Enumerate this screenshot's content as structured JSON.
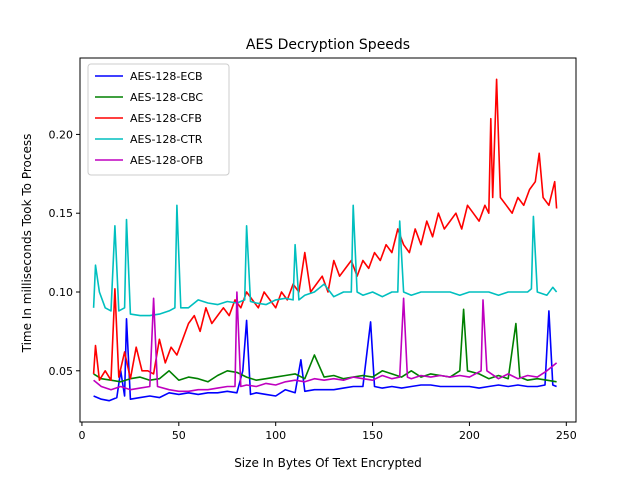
{
  "chart_data": {
    "type": "line",
    "title": "AES Decryption Speeds",
    "xlabel": "Size In Bytes Of Text Encrypted",
    "ylabel": "Time In milliseconds Took To Process",
    "xlim": [
      -1,
      255
    ],
    "ylim": [
      0.0175,
      0.2485
    ],
    "xticks": [
      0,
      50,
      100,
      150,
      200,
      250
    ],
    "yticks": [
      0.05,
      0.1,
      0.15,
      0.2
    ],
    "xtick_labels": [
      "0",
      "50",
      "100",
      "150",
      "200",
      "250"
    ],
    "ytick_labels": [
      "0.05",
      "0.10",
      "0.15",
      "0.20"
    ],
    "legend_position": "top-left",
    "grid": false,
    "series": [
      {
        "name": "AES-128-ECB",
        "color": "#0000ff",
        "points": [
          [
            6,
            0.034
          ],
          [
            10,
            0.032
          ],
          [
            14,
            0.031
          ],
          [
            18,
            0.033
          ],
          [
            20,
            0.05
          ],
          [
            22,
            0.034
          ],
          [
            23,
            0.083
          ],
          [
            25,
            0.032
          ],
          [
            30,
            0.033
          ],
          [
            35,
            0.034
          ],
          [
            40,
            0.033
          ],
          [
            45,
            0.036
          ],
          [
            50,
            0.035
          ],
          [
            55,
            0.036
          ],
          [
            60,
            0.035
          ],
          [
            65,
            0.036
          ],
          [
            70,
            0.036
          ],
          [
            75,
            0.037
          ],
          [
            80,
            0.036
          ],
          [
            83,
            0.05
          ],
          [
            85,
            0.082
          ],
          [
            87,
            0.035
          ],
          [
            90,
            0.036
          ],
          [
            95,
            0.035
          ],
          [
            100,
            0.034
          ],
          [
            105,
            0.038
          ],
          [
            110,
            0.036
          ],
          [
            113,
            0.057
          ],
          [
            115,
            0.037
          ],
          [
            120,
            0.038
          ],
          [
            125,
            0.038
          ],
          [
            130,
            0.038
          ],
          [
            135,
            0.039
          ],
          [
            140,
            0.04
          ],
          [
            145,
            0.04
          ],
          [
            149,
            0.081
          ],
          [
            151,
            0.04
          ],
          [
            155,
            0.039
          ],
          [
            160,
            0.04
          ],
          [
            165,
            0.039
          ],
          [
            170,
            0.04
          ],
          [
            175,
            0.041
          ],
          [
            180,
            0.041
          ],
          [
            185,
            0.04
          ],
          [
            190,
            0.04
          ],
          [
            195,
            0.04
          ],
          [
            200,
            0.04
          ],
          [
            205,
            0.039
          ],
          [
            210,
            0.04
          ],
          [
            215,
            0.041
          ],
          [
            220,
            0.04
          ],
          [
            225,
            0.041
          ],
          [
            230,
            0.04
          ],
          [
            235,
            0.04
          ],
          [
            239,
            0.041
          ],
          [
            241,
            0.088
          ],
          [
            243,
            0.041
          ],
          [
            245,
            0.04
          ]
        ]
      },
      {
        "name": "AES-128-CBC",
        "color": "#008000",
        "points": [
          [
            6,
            0.048
          ],
          [
            10,
            0.045
          ],
          [
            15,
            0.044
          ],
          [
            20,
            0.043
          ],
          [
            25,
            0.045
          ],
          [
            30,
            0.046
          ],
          [
            35,
            0.044
          ],
          [
            40,
            0.045
          ],
          [
            45,
            0.05
          ],
          [
            50,
            0.044
          ],
          [
            55,
            0.046
          ],
          [
            60,
            0.045
          ],
          [
            65,
            0.043
          ],
          [
            70,
            0.047
          ],
          [
            75,
            0.05
          ],
          [
            80,
            0.049
          ],
          [
            85,
            0.046
          ],
          [
            90,
            0.044
          ],
          [
            95,
            0.045
          ],
          [
            100,
            0.046
          ],
          [
            105,
            0.047
          ],
          [
            110,
            0.048
          ],
          [
            115,
            0.045
          ],
          [
            120,
            0.06
          ],
          [
            125,
            0.046
          ],
          [
            130,
            0.047
          ],
          [
            135,
            0.045
          ],
          [
            140,
            0.046
          ],
          [
            145,
            0.047
          ],
          [
            150,
            0.046
          ],
          [
            155,
            0.05
          ],
          [
            160,
            0.048
          ],
          [
            165,
            0.046
          ],
          [
            170,
            0.05
          ],
          [
            175,
            0.046
          ],
          [
            180,
            0.048
          ],
          [
            185,
            0.047
          ],
          [
            190,
            0.046
          ],
          [
            195,
            0.05
          ],
          [
            197,
            0.089
          ],
          [
            199,
            0.05
          ],
          [
            205,
            0.048
          ],
          [
            210,
            0.045
          ],
          [
            215,
            0.047
          ],
          [
            220,
            0.045
          ],
          [
            224,
            0.08
          ],
          [
            226,
            0.046
          ],
          [
            230,
            0.044
          ],
          [
            235,
            0.045
          ],
          [
            240,
            0.044
          ],
          [
            245,
            0.043
          ]
        ]
      },
      {
        "name": "AES-128-CFB",
        "color": "#ff0000",
        "points": [
          [
            6,
            0.048
          ],
          [
            7,
            0.066
          ],
          [
            9,
            0.044
          ],
          [
            12,
            0.05
          ],
          [
            15,
            0.044
          ],
          [
            17,
            0.102
          ],
          [
            19,
            0.046
          ],
          [
            22,
            0.062
          ],
          [
            25,
            0.045
          ],
          [
            28,
            0.065
          ],
          [
            31,
            0.05
          ],
          [
            34,
            0.05
          ],
          [
            37,
            0.048
          ],
          [
            40,
            0.07
          ],
          [
            43,
            0.055
          ],
          [
            46,
            0.065
          ],
          [
            49,
            0.06
          ],
          [
            52,
            0.07
          ],
          [
            55,
            0.08
          ],
          [
            58,
            0.085
          ],
          [
            61,
            0.075
          ],
          [
            64,
            0.09
          ],
          [
            67,
            0.08
          ],
          [
            70,
            0.085
          ],
          [
            73,
            0.09
          ],
          [
            76,
            0.085
          ],
          [
            79,
            0.095
          ],
          [
            82,
            0.09
          ],
          [
            85,
            0.1
          ],
          [
            88,
            0.095
          ],
          [
            91,
            0.09
          ],
          [
            94,
            0.1
          ],
          [
            97,
            0.095
          ],
          [
            100,
            0.09
          ],
          [
            103,
            0.1
          ],
          [
            106,
            0.095
          ],
          [
            109,
            0.105
          ],
          [
            112,
            0.1
          ],
          [
            115,
            0.125
          ],
          [
            118,
            0.1
          ],
          [
            121,
            0.105
          ],
          [
            124,
            0.11
          ],
          [
            127,
            0.1
          ],
          [
            130,
            0.12
          ],
          [
            133,
            0.11
          ],
          [
            136,
            0.115
          ],
          [
            139,
            0.12
          ],
          [
            142,
            0.11
          ],
          [
            145,
            0.12
          ],
          [
            148,
            0.115
          ],
          [
            151,
            0.125
          ],
          [
            154,
            0.12
          ],
          [
            157,
            0.13
          ],
          [
            160,
            0.125
          ],
          [
            163,
            0.14
          ],
          [
            166,
            0.13
          ],
          [
            169,
            0.125
          ],
          [
            172,
            0.14
          ],
          [
            175,
            0.13
          ],
          [
            178,
            0.145
          ],
          [
            181,
            0.135
          ],
          [
            184,
            0.15
          ],
          [
            187,
            0.14
          ],
          [
            190,
            0.145
          ],
          [
            193,
            0.15
          ],
          [
            196,
            0.14
          ],
          [
            199,
            0.155
          ],
          [
            202,
            0.15
          ],
          [
            205,
            0.145
          ],
          [
            208,
            0.155
          ],
          [
            210,
            0.15
          ],
          [
            211,
            0.21
          ],
          [
            212,
            0.16
          ],
          [
            214,
            0.235
          ],
          [
            216,
            0.16
          ],
          [
            219,
            0.155
          ],
          [
            222,
            0.15
          ],
          [
            225,
            0.16
          ],
          [
            228,
            0.155
          ],
          [
            231,
            0.165
          ],
          [
            234,
            0.17
          ],
          [
            236,
            0.188
          ],
          [
            238,
            0.16
          ],
          [
            241,
            0.155
          ],
          [
            244,
            0.17
          ],
          [
            245,
            0.153
          ]
        ]
      },
      {
        "name": "AES-128-CTR",
        "color": "#00bfbf",
        "points": [
          [
            6,
            0.09
          ],
          [
            7,
            0.117
          ],
          [
            9,
            0.1
          ],
          [
            12,
            0.09
          ],
          [
            15,
            0.088
          ],
          [
            17,
            0.142
          ],
          [
            19,
            0.088
          ],
          [
            22,
            0.09
          ],
          [
            23,
            0.146
          ],
          [
            25,
            0.086
          ],
          [
            30,
            0.085
          ],
          [
            35,
            0.085
          ],
          [
            40,
            0.086
          ],
          [
            45,
            0.088
          ],
          [
            48,
            0.09
          ],
          [
            49,
            0.155
          ],
          [
            51,
            0.09
          ],
          [
            55,
            0.09
          ],
          [
            60,
            0.095
          ],
          [
            65,
            0.093
          ],
          [
            70,
            0.092
          ],
          [
            75,
            0.094
          ],
          [
            80,
            0.093
          ],
          [
            84,
            0.095
          ],
          [
            85,
            0.142
          ],
          [
            87,
            0.094
          ],
          [
            90,
            0.093
          ],
          [
            95,
            0.092
          ],
          [
            100,
            0.095
          ],
          [
            105,
            0.096
          ],
          [
            109,
            0.095
          ],
          [
            110,
            0.13
          ],
          [
            112,
            0.095
          ],
          [
            115,
            0.098
          ],
          [
            120,
            0.1
          ],
          [
            125,
            0.105
          ],
          [
            130,
            0.097
          ],
          [
            135,
            0.1
          ],
          [
            139,
            0.1
          ],
          [
            140,
            0.155
          ],
          [
            142,
            0.1
          ],
          [
            145,
            0.098
          ],
          [
            150,
            0.1
          ],
          [
            155,
            0.097
          ],
          [
            160,
            0.1
          ],
          [
            163,
            0.1
          ],
          [
            164,
            0.145
          ],
          [
            166,
            0.1
          ],
          [
            170,
            0.098
          ],
          [
            175,
            0.1
          ],
          [
            180,
            0.1
          ],
          [
            185,
            0.1
          ],
          [
            190,
            0.1
          ],
          [
            195,
            0.098
          ],
          [
            200,
            0.1
          ],
          [
            205,
            0.1
          ],
          [
            210,
            0.1
          ],
          [
            215,
            0.098
          ],
          [
            220,
            0.1
          ],
          [
            225,
            0.1
          ],
          [
            230,
            0.1
          ],
          [
            232,
            0.102
          ],
          [
            233,
            0.148
          ],
          [
            235,
            0.1
          ],
          [
            240,
            0.098
          ],
          [
            243,
            0.103
          ],
          [
            245,
            0.1
          ]
        ]
      },
      {
        "name": "AES-128-OFB",
        "color": "#bf00bf",
        "points": [
          [
            6,
            0.044
          ],
          [
            10,
            0.04
          ],
          [
            15,
            0.038
          ],
          [
            20,
            0.04
          ],
          [
            25,
            0.038
          ],
          [
            30,
            0.039
          ],
          [
            35,
            0.04
          ],
          [
            37,
            0.096
          ],
          [
            39,
            0.04
          ],
          [
            45,
            0.038
          ],
          [
            50,
            0.037
          ],
          [
            55,
            0.037
          ],
          [
            60,
            0.038
          ],
          [
            65,
            0.038
          ],
          [
            70,
            0.039
          ],
          [
            75,
            0.04
          ],
          [
            79,
            0.04
          ],
          [
            80,
            0.1
          ],
          [
            82,
            0.04
          ],
          [
            85,
            0.041
          ],
          [
            90,
            0.04
          ],
          [
            95,
            0.042
          ],
          [
            100,
            0.041
          ],
          [
            105,
            0.043
          ],
          [
            110,
            0.044
          ],
          [
            115,
            0.043
          ],
          [
            120,
            0.045
          ],
          [
            125,
            0.044
          ],
          [
            130,
            0.045
          ],
          [
            135,
            0.044
          ],
          [
            140,
            0.046
          ],
          [
            145,
            0.045
          ],
          [
            150,
            0.044
          ],
          [
            155,
            0.047
          ],
          [
            160,
            0.045
          ],
          [
            164,
            0.046
          ],
          [
            166,
            0.096
          ],
          [
            168,
            0.046
          ],
          [
            170,
            0.045
          ],
          [
            175,
            0.047
          ],
          [
            180,
            0.046
          ],
          [
            185,
            0.047
          ],
          [
            190,
            0.046
          ],
          [
            195,
            0.047
          ],
          [
            200,
            0.046
          ],
          [
            206,
            0.05
          ],
          [
            207,
            0.095
          ],
          [
            209,
            0.05
          ],
          [
            215,
            0.045
          ],
          [
            220,
            0.048
          ],
          [
            225,
            0.045
          ],
          [
            230,
            0.047
          ],
          [
            235,
            0.046
          ],
          [
            240,
            0.05
          ],
          [
            245,
            0.055
          ]
        ]
      }
    ]
  }
}
